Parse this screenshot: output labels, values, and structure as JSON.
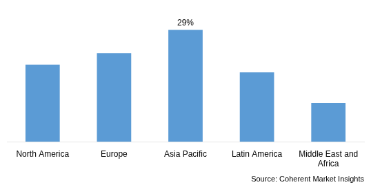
{
  "chart_data": {
    "type": "bar",
    "categories": [
      "North America",
      "Europe",
      "Asia Pacific",
      "Latin America",
      "Middle East and\nAfrica"
    ],
    "values": [
      20,
      23,
      29,
      18,
      10
    ],
    "color": "#5b9bd5",
    "ylim": [
      0,
      35
    ],
    "grid": false,
    "tick_labels": "x",
    "annotations": [
      {
        "text": "29%",
        "x": "Asia Pacific",
        "y": 29
      }
    ],
    "source": "Source: Coherent Market Insights"
  }
}
